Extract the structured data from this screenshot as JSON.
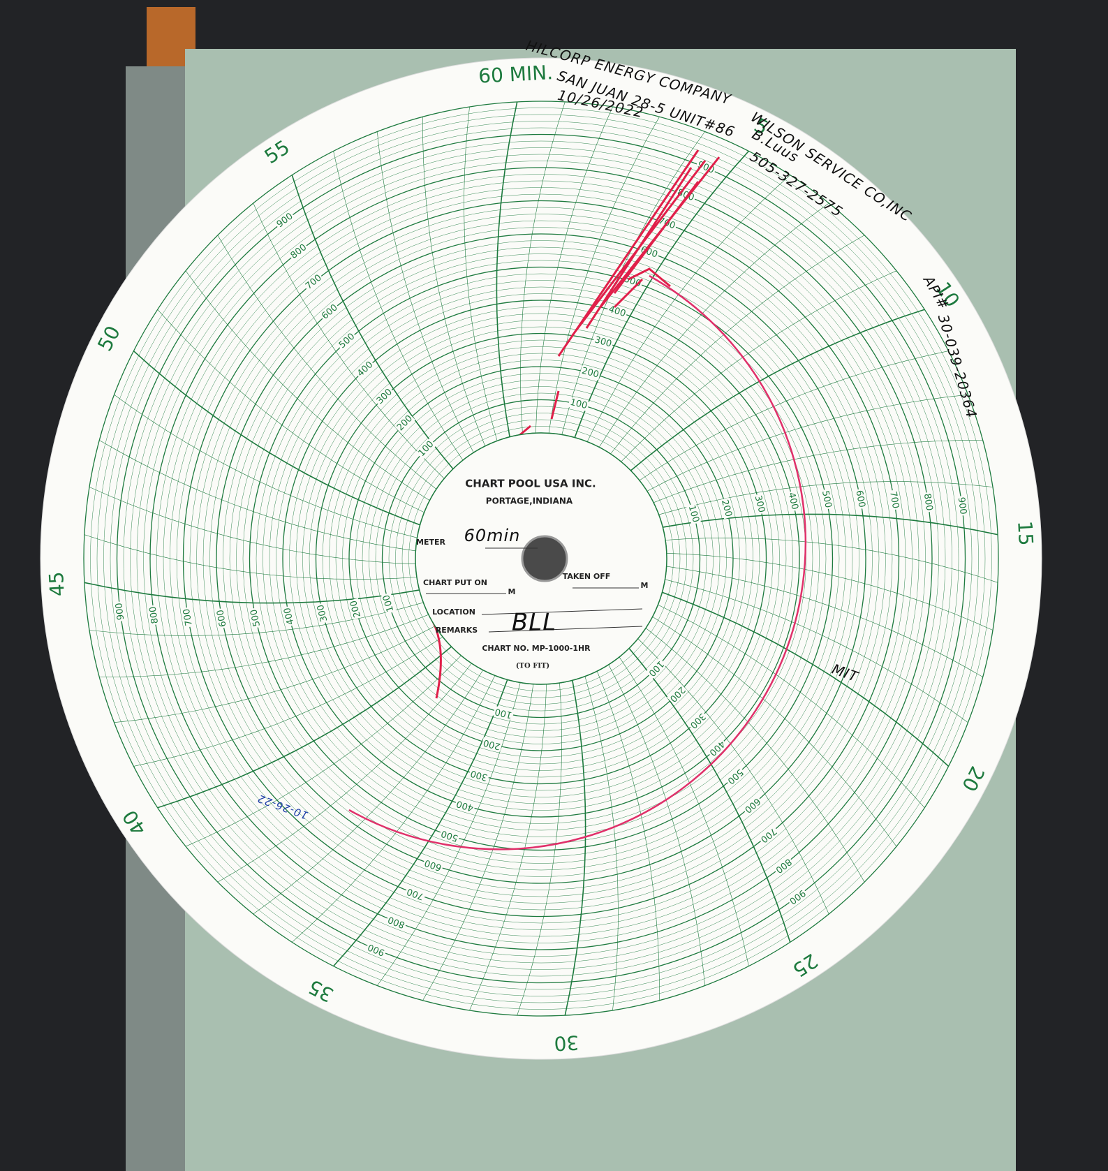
{
  "minute_labels": [
    "60 MIN.",
    "5",
    "10",
    "15",
    "20",
    "25",
    "30",
    "35",
    "40",
    "45",
    "50",
    "55"
  ],
  "scale_labels": [
    "100",
    "200",
    "300",
    "400",
    "500",
    "600",
    "700",
    "800",
    "900"
  ],
  "center_label": {
    "company": "CHART POOL USA INC.",
    "city": "PORTAGE,INDIANA",
    "meter_label": "METER",
    "meter_value": "60min",
    "put_on": "CHART PUT ON",
    "put_on_unit": "M",
    "taken_off": "TAKEN OFF",
    "taken_off_unit": "M",
    "location": "LOCATION",
    "remarks": "REMARKS",
    "remarks_value": "BLL",
    "chart_no": "CHART NO. MP-1000-1HR",
    "fit": "(TO FIT)"
  },
  "handwritten": {
    "operator": "HILCORP ENERGY COMPANY",
    "well": "SAN JUAN 28-5 UNIT#86",
    "date": "10/26/2022",
    "service": "WILSON SERVICE CO,INC",
    "tech": "B.Luus",
    "phone": "505-327-2575",
    "api_label": "API#",
    "api": "30-039-20364",
    "mit": "MIT",
    "blue_date": "10-26-22"
  }
}
